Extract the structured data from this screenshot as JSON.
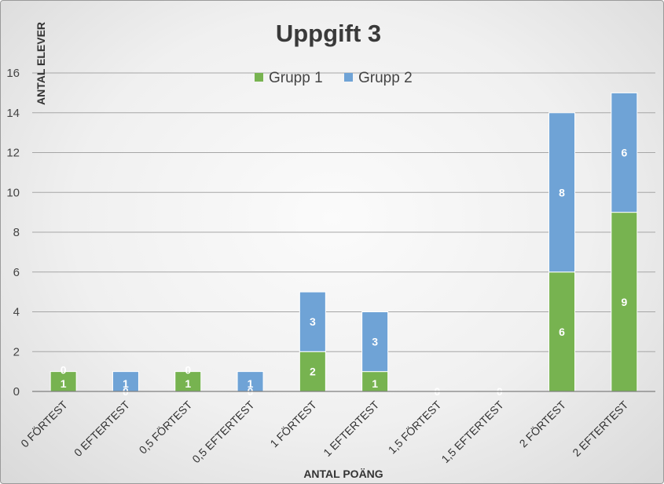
{
  "chart_data": {
    "type": "bar",
    "stacked": true,
    "title": "Uppgift 3",
    "xlabel": "ANTAL POÄNG",
    "ylabel": "ANTAL ELEVER",
    "ylim": [
      0,
      16
    ],
    "yticks": [
      0,
      2,
      4,
      6,
      8,
      10,
      12,
      14,
      16
    ],
    "grid": true,
    "legend_position": "top",
    "categories": [
      "0 FÖRTEST",
      "0 EFTERTEST",
      "0,5 FÖRTEST",
      "0,5 EFTERTEST",
      "1 FÖRTEST",
      "1 EFTERTEST",
      "1,5 FÖRTEST",
      "1,5 EFTERTEST",
      "2 FÖRTEST",
      "2 EFTERTEST"
    ],
    "series": [
      {
        "name": "Grupp 1",
        "color": "#77b350",
        "values": [
          1,
          0,
          1,
          0,
          2,
          1,
          0,
          0,
          6,
          9
        ]
      },
      {
        "name": "Grupp 2",
        "color": "#6fa3d6",
        "values": [
          0,
          1,
          0,
          1,
          3,
          3,
          0,
          0,
          8,
          6
        ]
      }
    ]
  }
}
